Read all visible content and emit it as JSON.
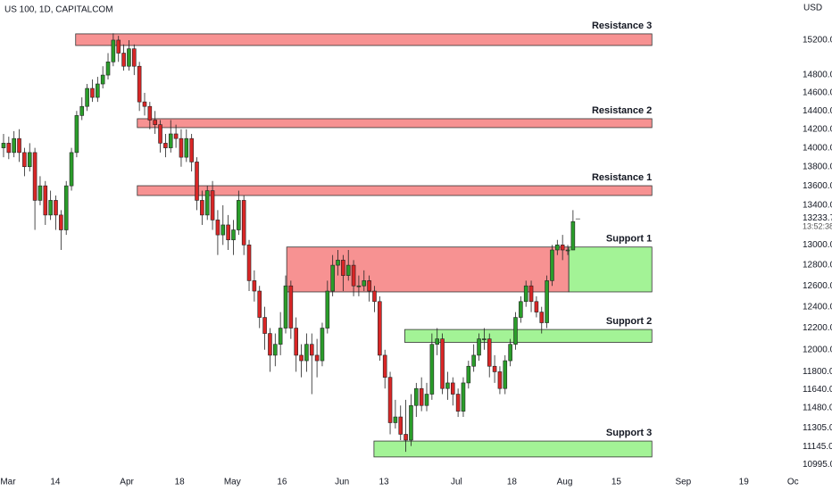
{
  "chart_data": {
    "type": "candlestick",
    "title": "US 100, 1D, CAPITALCOM",
    "currency": "USD",
    "countdown": "13:52:38",
    "log_scale": true,
    "grid": false,
    "up_color": "#2a9d2a",
    "down_color": "#d92626",
    "xlim": [
      -0.68,
      151.4
    ],
    "ylim": [
      10847,
      15673
    ],
    "xticks": [
      {
        "value": 0.85,
        "label": "Mar"
      },
      {
        "value": 9.9,
        "label": "14"
      },
      {
        "value": 23.6,
        "label": "Apr"
      },
      {
        "value": 33.7,
        "label": "18"
      },
      {
        "value": 43.8,
        "label": "May"
      },
      {
        "value": 53.3,
        "label": "16"
      },
      {
        "value": 64.8,
        "label": "Jun"
      },
      {
        "value": 72.8,
        "label": "13"
      },
      {
        "value": 86.7,
        "label": "Jul"
      },
      {
        "value": 97.3,
        "label": "18"
      },
      {
        "value": 107.4,
        "label": "Aug"
      },
      {
        "value": 117.3,
        "label": "15"
      },
      {
        "value": 130.1,
        "label": "Sep"
      },
      {
        "value": 141.7,
        "label": "19"
      },
      {
        "value": 151.1,
        "label": "Oc"
      }
    ],
    "yticks": [
      {
        "value": 15200,
        "label": "15200.0"
      },
      {
        "value": 14800,
        "label": "14800.0"
      },
      {
        "value": 14600,
        "label": "14600.0"
      },
      {
        "value": 14400,
        "label": "14400.0"
      },
      {
        "value": 14200,
        "label": "14200.0"
      },
      {
        "value": 14000,
        "label": "14000.0"
      },
      {
        "value": 13800,
        "label": "13800.0"
      },
      {
        "value": 13600,
        "label": "13600.0"
      },
      {
        "value": 13400,
        "label": "13400.0"
      },
      {
        "value": 13000,
        "label": "13000.0"
      },
      {
        "value": 12800,
        "label": "12800.0"
      },
      {
        "value": 12600,
        "label": "12600.0"
      },
      {
        "value": 12400,
        "label": "12400.0"
      },
      {
        "value": 12200,
        "label": "12200.0"
      },
      {
        "value": 12000,
        "label": "12000.0"
      },
      {
        "value": 11800,
        "label": "11800.0"
      },
      {
        "value": 11640,
        "label": "11640.0"
      },
      {
        "value": 11480,
        "label": "11480.0"
      },
      {
        "value": 11305,
        "label": "11305.0"
      },
      {
        "value": 11145,
        "label": "11145.0"
      },
      {
        "value": 10995,
        "label": "10995.0"
      }
    ],
    "zones": [
      {
        "name": "Resistance 3",
        "x": [
          13.8,
          124.1
        ],
        "y": [
          15138,
          15273
        ],
        "color": "#f79292"
      },
      {
        "name": "Resistance 2",
        "x": [
          25.6,
          124.1
        ],
        "y": [
          14218,
          14315
        ],
        "color": "#f79292"
      },
      {
        "name": "Resistance 1",
        "x": [
          25.6,
          124.1
        ],
        "y": [
          13500,
          13601
        ],
        "color": "#f79292"
      },
      {
        "x": [
          54.2,
          108.2
        ],
        "y": [
          12542,
          12979
        ],
        "color": "#f79292"
      },
      {
        "name": "Support 1",
        "x": [
          108.2,
          124.1
        ],
        "y": [
          12542,
          12979
        ],
        "color": "#a3f396"
      },
      {
        "name": "Support 2",
        "x": [
          76.8,
          124.1
        ],
        "y": [
          12068,
          12187
        ],
        "color": "#a3f396"
      },
      {
        "name": "Support 3",
        "x": [
          70.9,
          124.1
        ],
        "y": [
          11057,
          11192
        ],
        "color": "#a3f396"
      }
    ],
    "open": [
      14000,
      14050,
      13950,
      14100,
      13950,
      13800,
      13950,
      13450,
      13600,
      13300,
      13450,
      13300,
      13150,
      13600,
      13950,
      14350,
      14450,
      14650,
      14550,
      14700,
      14800,
      14950,
      15200,
      15050,
      14900,
      15100,
      14900,
      14500,
      14450,
      14300,
      14250,
      14050,
      14000,
      14150,
      14100,
      13900,
      14100,
      13850,
      13450,
      13300,
      13550,
      13250,
      13100,
      13200,
      13050,
      13150,
      13450,
      13000,
      12650,
      12550,
      12300,
      12150,
      11950,
      12050,
      12200,
      12600,
      12200,
      11950,
      11900,
      12050,
      11950,
      11900,
      12200,
      12550,
      12800,
      12850,
      12700,
      12800,
      12600,
      12600,
      12650,
      12550,
      12450,
      11950,
      11750,
      11350,
      11400,
      11250,
      11200,
      11500,
      11650,
      11500,
      11600,
      12050,
      12100,
      11650,
      11700,
      11600,
      11450,
      11700,
      11850,
      11950,
      12100,
      12100,
      11850,
      11800,
      11650,
      11900,
      12050,
      12300,
      12450,
      12600,
      12450,
      12350,
      12250,
      12650,
      12950,
      13000,
      12950,
      12950
    ],
    "high": [
      14150,
      14120,
      14180,
      14200,
      14000,
      14050,
      14000,
      13700,
      13650,
      13550,
      13500,
      13350,
      13650,
      14000,
      14400,
      14550,
      14700,
      14750,
      14780,
      14900,
      15050,
      15280,
      15250,
      15150,
      15200,
      15150,
      14950,
      14600,
      14500,
      14400,
      14300,
      14150,
      14300,
      14250,
      14200,
      14200,
      14150,
      13900,
      13550,
      13600,
      13650,
      13350,
      13400,
      13300,
      13250,
      13550,
      13500,
      13050,
      12750,
      12600,
      12400,
      12200,
      12150,
      12350,
      12700,
      12650,
      12300,
      12050,
      12150,
      12150,
      12100,
      12250,
      12650,
      12900,
      12950,
      12900,
      12950,
      12850,
      12700,
      12750,
      12700,
      12600,
      12500,
      12000,
      11800,
      11550,
      11500,
      11550,
      11600,
      11700,
      11750,
      11700,
      12150,
      12200,
      12150,
      11800,
      11750,
      11650,
      11750,
      11900,
      12050,
      12150,
      12200,
      12150,
      11950,
      11850,
      11950,
      12100,
      12350,
      12500,
      12650,
      12650,
      12500,
      12400,
      12700,
      13000,
      13050,
      13100,
      13000,
      13350
    ],
    "low": [
      13900,
      13880,
      13900,
      13850,
      13700,
      13750,
      13150,
      13400,
      13200,
      13250,
      13150,
      12950,
      13100,
      13550,
      13900,
      14300,
      14400,
      14500,
      14500,
      14650,
      14750,
      14900,
      14950,
      14850,
      14850,
      14800,
      14400,
      14350,
      14200,
      14150,
      13950,
      13900,
      13950,
      14000,
      13800,
      13850,
      13750,
      13350,
      13200,
      13250,
      13150,
      12900,
      13000,
      12950,
      12900,
      13100,
      12900,
      12550,
      12450,
      12200,
      12000,
      11800,
      11850,
      11950,
      12150,
      12100,
      11800,
      11750,
      11800,
      11600,
      11750,
      11850,
      12150,
      12500,
      12700,
      12550,
      12650,
      12500,
      12500,
      12550,
      12450,
      12350,
      11900,
      11650,
      11250,
      11300,
      11200,
      11100,
      11150,
      11400,
      11450,
      11450,
      11550,
      11950,
      11600,
      11550,
      11500,
      11400,
      11400,
      11650,
      11800,
      11900,
      12000,
      11750,
      11700,
      11600,
      11600,
      11850,
      12000,
      12250,
      12400,
      12350,
      12300,
      12150,
      12200,
      12600,
      12900,
      12850,
      12900,
      12950
    ],
    "close": [
      14050,
      13950,
      14100,
      13950,
      13800,
      13950,
      13450,
      13600,
      13300,
      13450,
      13300,
      13150,
      13600,
      13950,
      14350,
      14450,
      14650,
      14550,
      14700,
      14800,
      14950,
      15200,
      15050,
      14900,
      15100,
      14900,
      14500,
      14450,
      14300,
      14250,
      14050,
      14000,
      14150,
      14100,
      13900,
      14100,
      13850,
      13450,
      13300,
      13550,
      13250,
      13100,
      13200,
      13050,
      13150,
      13450,
      13000,
      12650,
      12550,
      12300,
      12150,
      11950,
      12050,
      12200,
      12600,
      12200,
      11950,
      11900,
      12050,
      11950,
      11900,
      12200,
      12550,
      12800,
      12850,
      12700,
      12800,
      12600,
      12600,
      12650,
      12550,
      12450,
      11950,
      11750,
      11350,
      11400,
      11250,
      11200,
      11500,
      11650,
      11500,
      11600,
      12050,
      12100,
      11650,
      11700,
      11600,
      11450,
      11700,
      11850,
      11950,
      12100,
      12100,
      11850,
      11800,
      11650,
      11900,
      12050,
      12300,
      12450,
      12600,
      12450,
      12350,
      12250,
      12650,
      12950,
      13000,
      12950,
      12950,
      13233.7
    ]
  }
}
